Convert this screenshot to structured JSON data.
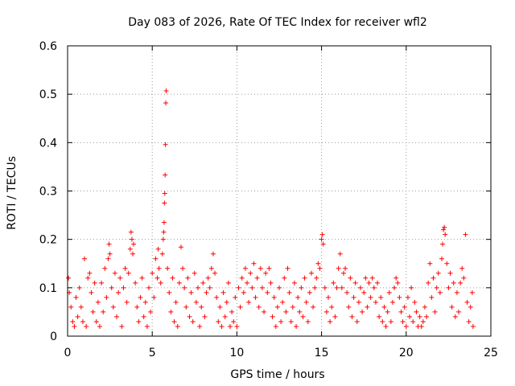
{
  "chart_data": {
    "type": "scatter",
    "title": "Day 083 of 2026, Rate Of TEC Index for receiver wfl2",
    "xlabel": "GPS time / hours",
    "ylabel": "ROTI / TECUs",
    "xlim": [
      0,
      25
    ],
    "ylim": [
      0,
      0.6
    ],
    "x_ticks": [
      0,
      5,
      10,
      15,
      20,
      25
    ],
    "x_tick_labels": [
      "0",
      "5",
      "10",
      "15",
      "20",
      "25"
    ],
    "y_ticks": [
      0,
      0.1,
      0.2,
      0.3,
      0.4,
      0.5,
      0.6
    ],
    "y_tick_labels": [
      "0",
      "0.1",
      "0.2",
      "0.3",
      "0.4",
      "0.5",
      "0.6"
    ],
    "grid": true,
    "marker": "plus",
    "color": "#ff0000",
    "series": [
      {
        "name": "ROTI",
        "points": [
          [
            0.05,
            0.12
          ],
          [
            0.1,
            0.09
          ],
          [
            0.2,
            0.06
          ],
          [
            0.3,
            0.03
          ],
          [
            0.4,
            0.02
          ],
          [
            0.5,
            0.08
          ],
          [
            0.6,
            0.04
          ],
          [
            0.7,
            0.1
          ],
          [
            0.8,
            0.06
          ],
          [
            0.9,
            0.03
          ],
          [
            1.0,
            0.16
          ],
          [
            1.1,
            0.02
          ],
          [
            1.2,
            0.12
          ],
          [
            1.3,
            0.13
          ],
          [
            1.4,
            0.09
          ],
          [
            1.5,
            0.05
          ],
          [
            1.6,
            0.11
          ],
          [
            1.7,
            0.03
          ],
          [
            1.8,
            0.07
          ],
          [
            1.9,
            0.02
          ],
          [
            2.0,
            0.11
          ],
          [
            2.1,
            0.05
          ],
          [
            2.2,
            0.14
          ],
          [
            2.3,
            0.08
          ],
          [
            2.4,
            0.16
          ],
          [
            2.45,
            0.19
          ],
          [
            2.5,
            0.17
          ],
          [
            2.6,
            0.1
          ],
          [
            2.7,
            0.06
          ],
          [
            2.8,
            0.13
          ],
          [
            2.9,
            0.04
          ],
          [
            3.0,
            0.09
          ],
          [
            3.1,
            0.12
          ],
          [
            3.2,
            0.02
          ],
          [
            3.3,
            0.1
          ],
          [
            3.4,
            0.14
          ],
          [
            3.5,
            0.07
          ],
          [
            3.6,
            0.13
          ],
          [
            3.7,
            0.18
          ],
          [
            3.75,
            0.215
          ],
          [
            3.8,
            0.2
          ],
          [
            3.85,
            0.17
          ],
          [
            3.9,
            0.19
          ],
          [
            4.0,
            0.11
          ],
          [
            4.1,
            0.06
          ],
          [
            4.2,
            0.03
          ],
          [
            4.3,
            0.08
          ],
          [
            4.4,
            0.12
          ],
          [
            4.5,
            0.04
          ],
          [
            4.6,
            0.07
          ],
          [
            4.7,
            0.02
          ],
          [
            4.8,
            0.1
          ],
          [
            4.9,
            0.05
          ],
          [
            5.0,
            0.13
          ],
          [
            5.1,
            0.08
          ],
          [
            5.2,
            0.16
          ],
          [
            5.3,
            0.12
          ],
          [
            5.35,
            0.18
          ],
          [
            5.4,
            0.14
          ],
          [
            5.5,
            0.11
          ],
          [
            5.6,
            0.17
          ],
          [
            5.65,
            0.2
          ],
          [
            5.68,
            0.215
          ],
          [
            5.7,
            0.235
          ],
          [
            5.72,
            0.275
          ],
          [
            5.74,
            0.295
          ],
          [
            5.76,
            0.333
          ],
          [
            5.78,
            0.396
          ],
          [
            5.8,
            0.482
          ],
          [
            5.82,
            0.507
          ],
          [
            5.9,
            0.14
          ],
          [
            6.0,
            0.09
          ],
          [
            6.1,
            0.05
          ],
          [
            6.2,
            0.12
          ],
          [
            6.3,
            0.03
          ],
          [
            6.4,
            0.07
          ],
          [
            6.5,
            0.02
          ],
          [
            6.6,
            0.11
          ],
          [
            6.7,
            0.184
          ],
          [
            6.8,
            0.14
          ],
          [
            6.9,
            0.1
          ],
          [
            7.0,
            0.06
          ],
          [
            7.1,
            0.12
          ],
          [
            7.2,
            0.04
          ],
          [
            7.3,
            0.09
          ],
          [
            7.4,
            0.03
          ],
          [
            7.5,
            0.13
          ],
          [
            7.6,
            0.07
          ],
          [
            7.7,
            0.1
          ],
          [
            7.8,
            0.02
          ],
          [
            7.9,
            0.06
          ],
          [
            8.0,
            0.11
          ],
          [
            8.1,
            0.04
          ],
          [
            8.2,
            0.09
          ],
          [
            8.3,
            0.12
          ],
          [
            8.4,
            0.1
          ],
          [
            8.5,
            0.14
          ],
          [
            8.6,
            0.17
          ],
          [
            8.7,
            0.13
          ],
          [
            8.8,
            0.08
          ],
          [
            8.9,
            0.03
          ],
          [
            9.0,
            0.06
          ],
          [
            9.1,
            0.02
          ],
          [
            9.2,
            0.09
          ],
          [
            9.3,
            0.04
          ],
          [
            9.4,
            0.07
          ],
          [
            9.5,
            0.11
          ],
          [
            9.6,
            0.02
          ],
          [
            9.7,
            0.05
          ],
          [
            9.8,
            0.03
          ],
          [
            9.9,
            0.08
          ],
          [
            10.0,
            0.02
          ],
          [
            10.1,
            0.1
          ],
          [
            10.2,
            0.06
          ],
          [
            10.3,
            0.12
          ],
          [
            10.4,
            0.09
          ],
          [
            10.5,
            0.14
          ],
          [
            10.6,
            0.11
          ],
          [
            10.7,
            0.07
          ],
          [
            10.8,
            0.13
          ],
          [
            10.9,
            0.1
          ],
          [
            11.0,
            0.15
          ],
          [
            11.1,
            0.08
          ],
          [
            11.2,
            0.12
          ],
          [
            11.3,
            0.06
          ],
          [
            11.4,
            0.14
          ],
          [
            11.5,
            0.1
          ],
          [
            11.6,
            0.05
          ],
          [
            11.7,
            0.13
          ],
          [
            11.8,
            0.09
          ],
          [
            11.9,
            0.14
          ],
          [
            12.0,
            0.11
          ],
          [
            12.1,
            0.04
          ],
          [
            12.2,
            0.08
          ],
          [
            12.3,
            0.02
          ],
          [
            12.4,
            0.06
          ],
          [
            12.5,
            0.1
          ],
          [
            12.6,
            0.03
          ],
          [
            12.7,
            0.07
          ],
          [
            12.8,
            0.12
          ],
          [
            12.9,
            0.05
          ],
          [
            13.0,
            0.14
          ],
          [
            13.1,
            0.09
          ],
          [
            13.2,
            0.03
          ],
          [
            13.3,
            0.06
          ],
          [
            13.4,
            0.11
          ],
          [
            13.5,
            0.02
          ],
          [
            13.6,
            0.08
          ],
          [
            13.7,
            0.05
          ],
          [
            13.8,
            0.1
          ],
          [
            13.9,
            0.04
          ],
          [
            14.0,
            0.12
          ],
          [
            14.1,
            0.07
          ],
          [
            14.2,
            0.03
          ],
          [
            14.3,
            0.09
          ],
          [
            14.4,
            0.13
          ],
          [
            14.5,
            0.06
          ],
          [
            14.6,
            0.1
          ],
          [
            14.7,
            0.12
          ],
          [
            14.8,
            0.15
          ],
          [
            14.9,
            0.14
          ],
          [
            15.0,
            0.2
          ],
          [
            15.05,
            0.21
          ],
          [
            15.1,
            0.19
          ],
          [
            15.2,
            0.1
          ],
          [
            15.3,
            0.05
          ],
          [
            15.4,
            0.08
          ],
          [
            15.5,
            0.03
          ],
          [
            15.6,
            0.06
          ],
          [
            15.7,
            0.11
          ],
          [
            15.8,
            0.04
          ],
          [
            15.9,
            0.1
          ],
          [
            16.0,
            0.14
          ],
          [
            16.1,
            0.17
          ],
          [
            16.2,
            0.1
          ],
          [
            16.3,
            0.13
          ],
          [
            16.4,
            0.14
          ],
          [
            16.5,
            0.09
          ],
          [
            16.6,
            0.06
          ],
          [
            16.7,
            0.12
          ],
          [
            16.8,
            0.04
          ],
          [
            16.9,
            0.08
          ],
          [
            17.0,
            0.11
          ],
          [
            17.1,
            0.03
          ],
          [
            17.2,
            0.07
          ],
          [
            17.3,
            0.1
          ],
          [
            17.4,
            0.05
          ],
          [
            17.5,
            0.09
          ],
          [
            17.6,
            0.12
          ],
          [
            17.7,
            0.06
          ],
          [
            17.8,
            0.11
          ],
          [
            17.9,
            0.08
          ],
          [
            18.0,
            0.12
          ],
          [
            18.1,
            0.1
          ],
          [
            18.2,
            0.07
          ],
          [
            18.3,
            0.11
          ],
          [
            18.4,
            0.04
          ],
          [
            18.5,
            0.08
          ],
          [
            18.6,
            0.03
          ],
          [
            18.7,
            0.06
          ],
          [
            18.8,
            0.02
          ],
          [
            18.9,
            0.05
          ],
          [
            19.0,
            0.09
          ],
          [
            19.1,
            0.03
          ],
          [
            19.2,
            0.07
          ],
          [
            19.3,
            0.1
          ],
          [
            19.4,
            0.12
          ],
          [
            19.5,
            0.11
          ],
          [
            19.6,
            0.08
          ],
          [
            19.7,
            0.05
          ],
          [
            19.8,
            0.03
          ],
          [
            19.9,
            0.06
          ],
          [
            20.0,
            0.02
          ],
          [
            20.1,
            0.08
          ],
          [
            20.2,
            0.04
          ],
          [
            20.3,
            0.1
          ],
          [
            20.4,
            0.03
          ],
          [
            20.5,
            0.07
          ],
          [
            20.6,
            0.05
          ],
          [
            20.7,
            0.02
          ],
          [
            20.8,
            0.04
          ],
          [
            20.9,
            0.02
          ],
          [
            21.0,
            0.03
          ],
          [
            21.1,
            0.06
          ],
          [
            21.2,
            0.04
          ],
          [
            21.3,
            0.11
          ],
          [
            21.4,
            0.15
          ],
          [
            21.5,
            0.08
          ],
          [
            21.6,
            0.12
          ],
          [
            21.7,
            0.05
          ],
          [
            21.8,
            0.1
          ],
          [
            21.9,
            0.13
          ],
          [
            22.0,
            0.09
          ],
          [
            22.1,
            0.16
          ],
          [
            22.15,
            0.19
          ],
          [
            22.2,
            0.22
          ],
          [
            22.25,
            0.225
          ],
          [
            22.3,
            0.21
          ],
          [
            22.4,
            0.15
          ],
          [
            22.5,
            0.1
          ],
          [
            22.6,
            0.13
          ],
          [
            22.7,
            0.06
          ],
          [
            22.8,
            0.11
          ],
          [
            22.9,
            0.04
          ],
          [
            23.0,
            0.09
          ],
          [
            23.1,
            0.05
          ],
          [
            23.2,
            0.11
          ],
          [
            23.3,
            0.14
          ],
          [
            23.4,
            0.12
          ],
          [
            23.5,
            0.21
          ],
          [
            23.6,
            0.07
          ],
          [
            23.7,
            0.03
          ],
          [
            23.8,
            0.06
          ],
          [
            23.9,
            0.09
          ],
          [
            23.95,
            0.02
          ]
        ]
      }
    ]
  }
}
